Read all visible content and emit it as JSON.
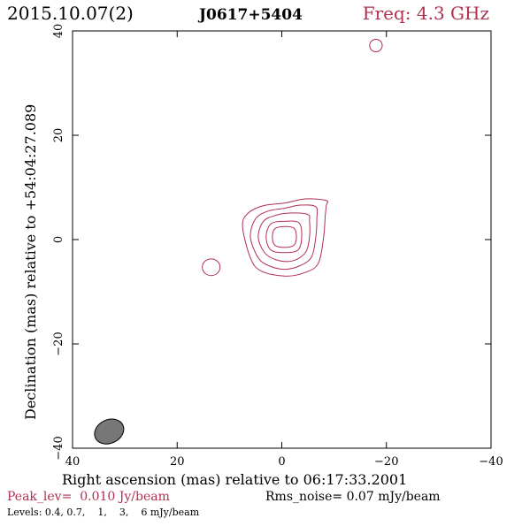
{
  "header": {
    "date": "2015.10.07(2)",
    "source": "J0617+5404",
    "freq": "Freq: 4.3 GHz"
  },
  "axes": {
    "xlabel": "Right ascension (mas) relative to 06:17:33.2001",
    "ylabel": "Declination (mas) relative to +54:04:27.089"
  },
  "footer": {
    "peak": "Peak_lev=  0.010 Jy/beam",
    "rms": "Rms_noise= 0.07 mJy/beam",
    "levels": "Levels: 0.4, 0.7,    1,    3,    6 mJy/beam"
  },
  "colors": {
    "contour": "#b03050",
    "axis": "#000000",
    "beam_fill": "#777777"
  },
  "chart_data": {
    "type": "contour",
    "title": "J0617+5404",
    "xlabel": "Right ascension (mas) relative to 06:17:33.2001",
    "ylabel": "Declination (mas) relative to +54:04:27.089",
    "xlim": [
      40,
      -40
    ],
    "ylim": [
      -40,
      40
    ],
    "x_ticks": [
      40,
      20,
      0,
      -20,
      -40
    ],
    "y_ticks": [
      -40,
      -20,
      0,
      20,
      40
    ],
    "x_tick_labels": [
      "40",
      "20",
      "0",
      "−20",
      "−40"
    ],
    "y_tick_labels": [
      "−40",
      "−20",
      "0",
      "20",
      "40"
    ],
    "levels_mJy_per_beam": [
      0.4,
      0.7,
      1,
      3,
      6
    ],
    "peak_Jy_per_beam": 0.01,
    "rms_noise_mJy_per_beam": 0.07,
    "core": {
      "center": [
        -0.5,
        0.5
      ],
      "contours": [
        {
          "level": 0.4,
          "points": [
            [
              -8,
              7
            ],
            [
              -4,
              7.3
            ],
            [
              0,
              6.5
            ],
            [
              4,
              6
            ],
            [
              7,
              4.5
            ],
            [
              8,
              2
            ],
            [
              6.5,
              -4
            ],
            [
              4.5,
              -6.5
            ],
            [
              0,
              -7.5
            ],
            [
              -4,
              -6.8
            ],
            [
              -6.5,
              -5
            ],
            [
              -7.5,
              0
            ],
            [
              -7.8,
              4
            ],
            [
              -8,
              6
            ]
          ]
        },
        {
          "level": 0.7,
          "points": [
            [
              -6,
              5.8
            ],
            [
              -3,
              6.1
            ],
            [
              0,
              5.5
            ],
            [
              3,
              5
            ],
            [
              5.5,
              3.5
            ],
            [
              6.5,
              0
            ],
            [
              5,
              -4
            ],
            [
              3,
              -5.5
            ],
            [
              0,
              -6.2
            ],
            [
              -3,
              -5.5
            ],
            [
              -5.2,
              -3.8
            ],
            [
              -6,
              0
            ],
            [
              -6.2,
              3.5
            ]
          ]
        },
        {
          "level": 1,
          "points": [
            [
              -4.5,
              4.3
            ],
            [
              -1.5,
              4.6
            ],
            [
              1.5,
              4.2
            ],
            [
              4,
              3
            ],
            [
              5,
              0
            ],
            [
              3.8,
              -3
            ],
            [
              1.5,
              -4.4
            ],
            [
              -1.5,
              -4.6
            ],
            [
              -4,
              -3
            ],
            [
              -4.8,
              0
            ],
            [
              -4.8,
              3
            ]
          ]
        },
        {
          "level": 3,
          "points": [
            [
              -2.8,
              2.7
            ],
            [
              0,
              3
            ],
            [
              2.6,
              2.5
            ],
            [
              3.5,
              0
            ],
            [
              2.6,
              -2.5
            ],
            [
              0,
              -3
            ],
            [
              -2.6,
              -2.5
            ],
            [
              -3.3,
              0
            ]
          ]
        },
        {
          "level": 6,
          "points": [
            [
              -1.8,
              1.7
            ],
            [
              0,
              2
            ],
            [
              1.8,
              1.6
            ],
            [
              2.3,
              0
            ],
            [
              1.8,
              -1.6
            ],
            [
              0,
              -2
            ],
            [
              -1.8,
              -1.6
            ],
            [
              -2.3,
              0
            ]
          ]
        }
      ]
    },
    "components": [
      {
        "x": 13.5,
        "y": -5.3,
        "rx": 1.7,
        "ry": 1.6
      },
      {
        "x": -18,
        "y": 37.2,
        "rx": 1.2,
        "ry": 1.2
      }
    ],
    "beam": {
      "x": 33,
      "y": -36.8,
      "major": 5.8,
      "minor": 4.5,
      "pa": -25
    }
  }
}
